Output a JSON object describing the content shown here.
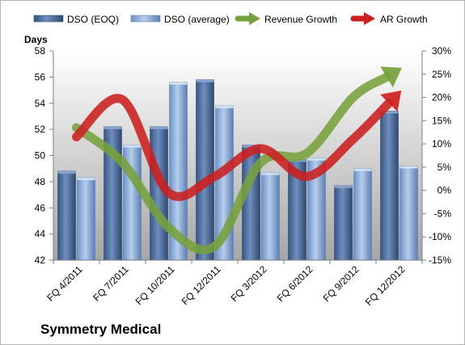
{
  "company": "Symmetry Medical",
  "colors": {
    "dso_eoq": "#4f6d99",
    "dso_avg": "#8fb0dc",
    "revenue_growth": "#76a03c",
    "ar_growth": "#cc1f1f",
    "plot_bg": "#bfbfbf"
  },
  "chart_data": {
    "type": "bar",
    "categories": [
      "FQ 4/2011",
      "FQ 7/2011",
      "FQ 10/2011",
      "FQ 12/2011",
      "FQ 3/2012",
      "FQ 6/2012",
      "FQ 9/2012",
      "FQ 12/2012"
    ],
    "series": [
      {
        "name": "DSO (EOQ)",
        "type": "bar",
        "axis": "left",
        "values": [
          48.8,
          52.2,
          52.2,
          55.8,
          50.8,
          49.7,
          47.7,
          53.4
        ]
      },
      {
        "name": "DSO (average)",
        "type": "bar",
        "axis": "left",
        "values": [
          48.3,
          50.8,
          55.6,
          53.8,
          48.7,
          49.8,
          49.0,
          49.2
        ]
      },
      {
        "name": "Revenue Growth",
        "type": "line",
        "axis": "right",
        "values": [
          13.5,
          6,
          -8,
          -12,
          6,
          8,
          20,
          26
        ]
      },
      {
        "name": "AR Growth",
        "type": "line",
        "axis": "right",
        "values": [
          11.5,
          19.5,
          -0.5,
          3,
          9,
          3,
          11,
          21
        ]
      }
    ],
    "ylabel": "Days",
    "ylim": [
      42,
      58
    ],
    "yticks": [
      "42",
      "44",
      "46",
      "48",
      "50",
      "52",
      "54",
      "56",
      "58"
    ],
    "y2lim": [
      -15,
      30
    ],
    "y2ticks": [
      "-15%",
      "-10%",
      "-5%",
      "0%",
      "5%",
      "10%",
      "15%",
      "20%",
      "25%",
      "30%"
    ],
    "grid": false,
    "legend_position": "top"
  }
}
